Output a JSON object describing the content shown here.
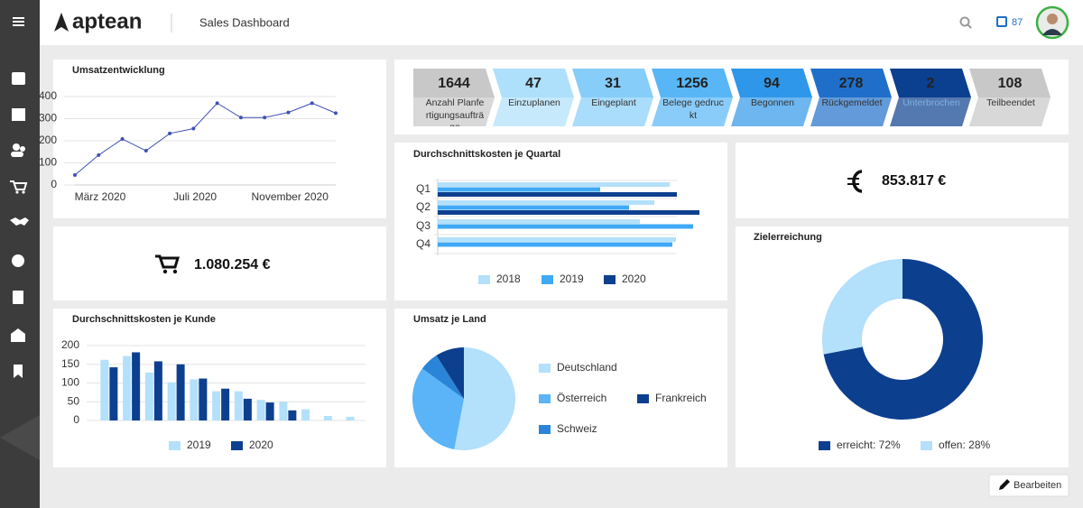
{
  "header": {
    "logo": "aptean",
    "title": "Sales Dashboard",
    "notifications": 87
  },
  "pipeline": [
    {
      "value": 1644,
      "label": "Anzahl Planfertigungsaufträge",
      "color": "#c8c8c8"
    },
    {
      "value": 47,
      "label": "Einzuplanen",
      "color": "#aee0fb"
    },
    {
      "value": 31,
      "label": "Eingeplant",
      "color": "#86cdf9"
    },
    {
      "value": 1256,
      "label": "Belege gedruckt",
      "color": "#58b6f6"
    },
    {
      "value": 94,
      "label": "Begonnen",
      "color": "#2f97ea"
    },
    {
      "value": 278,
      "label": "Rückgemeldet",
      "color": "#1f6fca"
    },
    {
      "value": 2,
      "label": "Unterbrochen",
      "color": "#0b3f8f"
    },
    {
      "value": 108,
      "label": "Teilbeendet",
      "color": "#c8c8c8"
    }
  ],
  "kpis": [
    {
      "value": "1.080.254 €"
    },
    {
      "value": "853.817 €"
    }
  ],
  "button": "Bearbeiten",
  "chart_data": [
    {
      "type": "line",
      "title": "Umsatzentwicklung",
      "categories": [
        "März 2020",
        null,
        null,
        null,
        "Juli 2020",
        null,
        null,
        null,
        "November 2020",
        null,
        null,
        null
      ],
      "values": [
        45,
        135,
        208,
        155,
        233,
        255,
        370,
        305,
        305,
        328,
        370,
        325
      ],
      "color": "#3f51b5",
      "ylim": [
        0,
        400
      ],
      "yticks": [
        0,
        100,
        200,
        300,
        400
      ],
      "grid": true
    },
    {
      "type": "bar",
      "orientation": "horizontal",
      "title": "Durchschnittskosten je Quartal",
      "categories": [
        "Q1",
        "Q2",
        "Q3",
        "Q4"
      ],
      "xlim": [
        0,
        300
      ],
      "series": [
        {
          "name": "2018",
          "color": "#b3e0fb",
          "values": [
            257,
            240,
            224,
            264
          ]
        },
        {
          "name": "2019",
          "color": "#3fa9f5",
          "values": [
            180,
            212,
            283,
            260
          ]
        },
        {
          "name": "2020",
          "color": "#0d3f8f",
          "values": [
            265,
            290,
            null,
            null
          ]
        }
      ]
    },
    {
      "type": "bar",
      "title": "Durchschnittskosten je Kunde",
      "categories": [
        null,
        null,
        null,
        null,
        null,
        null,
        null,
        null,
        null,
        null,
        null,
        null
      ],
      "ylim": [
        0,
        200
      ],
      "yticks": [
        0,
        50,
        100,
        150,
        200
      ],
      "grid": true,
      "series": [
        {
          "name": "2019",
          "color": "#b3e0fb",
          "values": [
            162,
            172,
            128,
            102,
            110,
            78,
            78,
            55,
            50,
            30,
            12,
            10
          ]
        },
        {
          "name": "2020",
          "color": "#0d3f8f",
          "values": [
            142,
            182,
            158,
            150,
            112,
            85,
            58,
            48,
            27,
            null,
            null,
            null
          ]
        }
      ]
    },
    {
      "type": "pie",
      "title": "Umsatz je Land",
      "categories": [
        "Deutschland",
        "Österreich",
        "Schweiz",
        "Frankreich"
      ],
      "values": [
        53,
        32,
        6,
        9
      ],
      "colors": [
        "#b3e0fb",
        "#5ab4f7",
        "#2a85d8",
        "#0d3f8f"
      ]
    },
    {
      "type": "donut",
      "title": "Zielerreichung",
      "categories": [
        "erreicht: 72%",
        "offen: 28%"
      ],
      "values": [
        72,
        28
      ],
      "colors": [
        "#0d3f8f",
        "#b3e0fb"
      ]
    }
  ]
}
